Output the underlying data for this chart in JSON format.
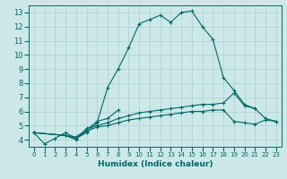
{
  "title": "",
  "xlabel": "Humidex (Indice chaleur)",
  "ylabel": "",
  "bg_color": "#cce8e8",
  "grid_color": "#b0d0d0",
  "line_color": "#006868",
  "xlim": [
    -0.5,
    23.5
  ],
  "ylim": [
    3.5,
    13.5
  ],
  "xticks": [
    0,
    1,
    2,
    3,
    4,
    5,
    6,
    7,
    8,
    9,
    10,
    11,
    12,
    13,
    14,
    15,
    16,
    17,
    18,
    19,
    20,
    21,
    22,
    23
  ],
  "yticks": [
    4,
    5,
    6,
    7,
    8,
    9,
    10,
    11,
    12,
    13
  ],
  "series": [
    {
      "x": [
        0,
        1,
        2,
        3,
        4,
        5,
        6,
        7,
        8,
        9,
        10,
        11,
        12,
        13,
        14,
        15,
        16,
        17,
        18,
        19,
        20,
        21
      ],
      "y": [
        4.5,
        3.7,
        4.1,
        4.5,
        4.1,
        4.5,
        5.2,
        7.7,
        9.0,
        10.5,
        12.2,
        12.5,
        12.8,
        12.3,
        13.0,
        13.1,
        12.0,
        11.1,
        8.4,
        7.5,
        6.5,
        6.2
      ]
    },
    {
      "x": [
        0,
        3,
        4,
        5,
        6,
        7,
        8
      ],
      "y": [
        4.5,
        4.3,
        4.2,
        4.7,
        5.3,
        5.5,
        6.1
      ]
    },
    {
      "x": [
        0,
        3,
        4,
        5,
        6,
        7,
        8,
        9,
        10,
        11,
        12,
        13,
        14,
        15,
        16,
        17,
        18,
        19,
        20,
        21,
        22,
        23
      ],
      "y": [
        4.5,
        4.3,
        4.0,
        4.8,
        5.0,
        5.2,
        5.5,
        5.7,
        5.9,
        6.0,
        6.1,
        6.2,
        6.3,
        6.4,
        6.5,
        6.5,
        6.6,
        7.3,
        6.4,
        6.2,
        5.5,
        5.3
      ]
    },
    {
      "x": [
        0,
        3,
        4,
        5,
        6,
        7,
        8,
        9,
        10,
        11,
        12,
        13,
        14,
        15,
        16,
        17,
        18,
        19,
        20,
        21,
        22,
        23
      ],
      "y": [
        4.5,
        4.3,
        4.1,
        4.6,
        4.9,
        5.0,
        5.2,
        5.4,
        5.5,
        5.6,
        5.7,
        5.8,
        5.9,
        6.0,
        6.0,
        6.1,
        6.1,
        5.3,
        5.2,
        5.1,
        5.4,
        5.3
      ]
    }
  ]
}
